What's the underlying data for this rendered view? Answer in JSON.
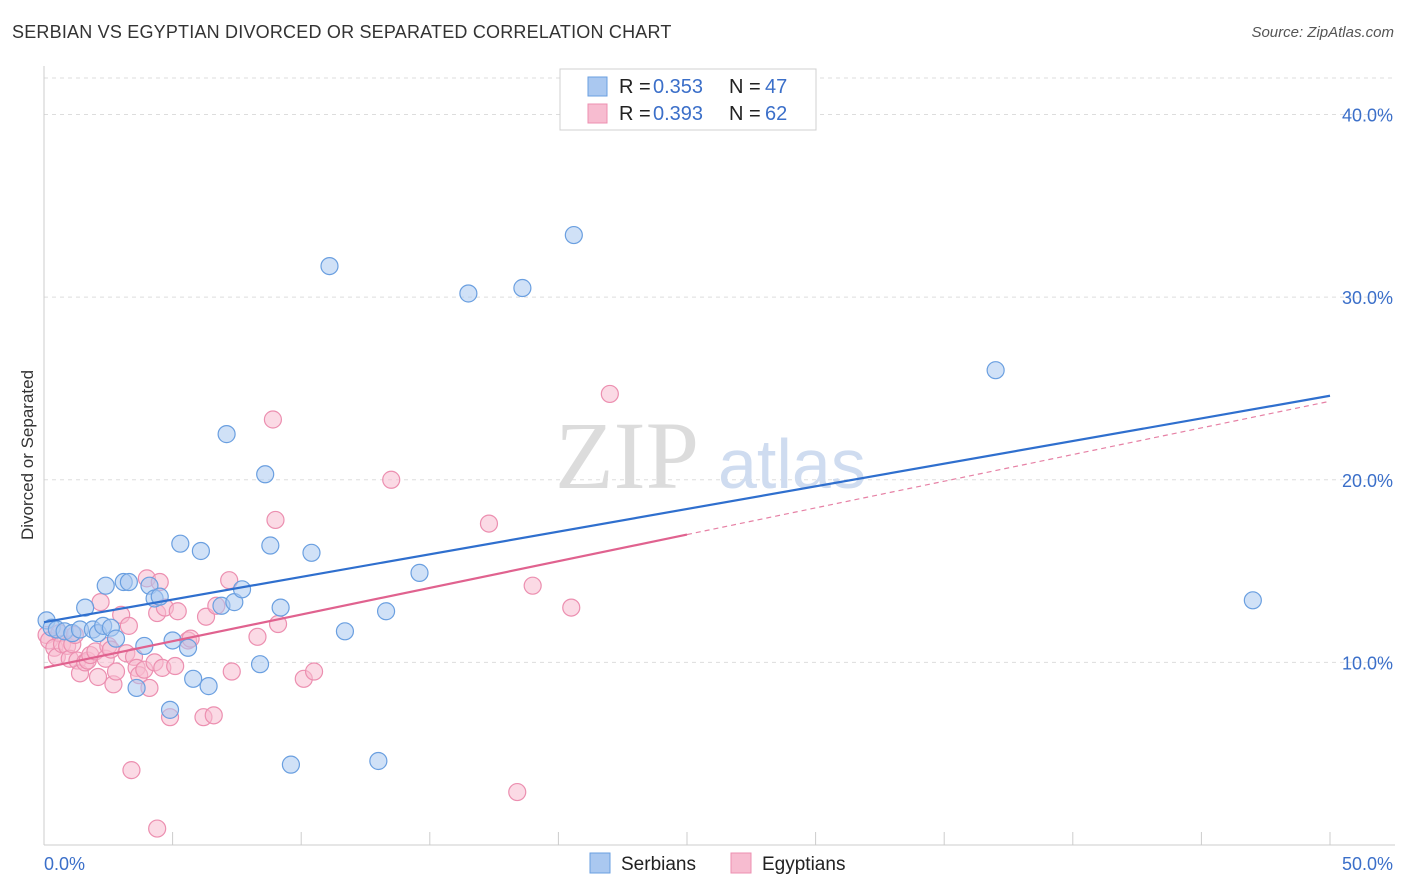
{
  "title": "SERBIAN VS EGYPTIAN DIVORCED OR SEPARATED CORRELATION CHART",
  "source": "Source: ZipAtlas.com",
  "watermark": {
    "zip": "ZIP",
    "atlas": "atlas"
  },
  "legend": {
    "series1": {
      "r_label": "R = ",
      "r_value": "0.353",
      "n_label": "N = ",
      "n_value": "47"
    },
    "series2": {
      "r_label": "R = ",
      "r_value": "0.393",
      "n_label": "N = ",
      "n_value": "62"
    }
  },
  "colors": {
    "serbians_fill": "#aac8f0",
    "serbians_stroke": "#6a9fe0",
    "serbians_line": "#2f6fce",
    "egyptians_fill": "#f7bcd0",
    "egyptians_stroke": "#ec8fb0",
    "egyptians_line": "#e0628f",
    "grid": "#dddddd",
    "axis_label": "#3b6fc9"
  },
  "chart_data": {
    "type": "scatter",
    "title": "SERBIAN VS EGYPTIAN DIVORCED OR SEPARATED CORRELATION CHART",
    "xlabel": "",
    "ylabel": "Divorced or Separated",
    "xlim": [
      0,
      50
    ],
    "ylim": [
      0,
      42
    ],
    "x_tick_labels": [
      "0.0%",
      "50.0%"
    ],
    "y_ticks": [
      10,
      20,
      30,
      40
    ],
    "y_tick_labels": [
      "10.0%",
      "20.0%",
      "30.0%",
      "40.0%"
    ],
    "grid": true,
    "legend_position": "top-center",
    "series": [
      {
        "name": "Serbians",
        "trend": {
          "x": [
            0,
            50
          ],
          "y": [
            12.2,
            24.6
          ]
        },
        "points": [
          [
            0.1,
            12.3
          ],
          [
            0.3,
            11.9
          ],
          [
            0.5,
            11.8
          ],
          [
            0.8,
            11.7
          ],
          [
            1.1,
            11.6
          ],
          [
            1.4,
            11.8
          ],
          [
            1.6,
            13.0
          ],
          [
            1.9,
            11.8
          ],
          [
            2.1,
            11.6
          ],
          [
            2.3,
            12.0
          ],
          [
            2.4,
            14.2
          ],
          [
            2.6,
            11.9
          ],
          [
            2.8,
            11.3
          ],
          [
            3.1,
            14.4
          ],
          [
            3.3,
            14.4
          ],
          [
            3.6,
            8.6
          ],
          [
            3.9,
            10.9
          ],
          [
            4.1,
            14.2
          ],
          [
            4.3,
            13.5
          ],
          [
            4.5,
            13.6
          ],
          [
            4.9,
            7.4
          ],
          [
            5.0,
            11.2
          ],
          [
            5.3,
            16.5
          ],
          [
            5.6,
            10.8
          ],
          [
            5.8,
            9.1
          ],
          [
            6.1,
            16.1
          ],
          [
            6.4,
            8.7
          ],
          [
            6.9,
            13.1
          ],
          [
            7.1,
            22.5
          ],
          [
            7.4,
            13.3
          ],
          [
            7.7,
            14.0
          ],
          [
            8.4,
            9.9
          ],
          [
            8.6,
            20.3
          ],
          [
            8.8,
            16.4
          ],
          [
            9.2,
            13.0
          ],
          [
            9.6,
            4.4
          ],
          [
            10.4,
            16.0
          ],
          [
            11.1,
            31.7
          ],
          [
            11.7,
            11.7
          ],
          [
            13.0,
            4.6
          ],
          [
            13.3,
            12.8
          ],
          [
            14.6,
            14.9
          ],
          [
            16.5,
            30.2
          ],
          [
            18.6,
            30.5
          ],
          [
            20.6,
            33.4
          ],
          [
            37.0,
            26.0
          ],
          [
            47.0,
            13.4
          ]
        ]
      },
      {
        "name": "Egyptians",
        "trend": {
          "x": [
            0,
            25
          ],
          "y": [
            9.7,
            17.0
          ]
        },
        "trend_dashed": {
          "x": [
            25,
            50
          ],
          "y": [
            17.0,
            24.3
          ]
        },
        "points": [
          [
            0.1,
            11.5
          ],
          [
            0.2,
            11.2
          ],
          [
            0.4,
            10.8
          ],
          [
            0.5,
            10.3
          ],
          [
            0.6,
            11.6
          ],
          [
            0.7,
            11.0
          ],
          [
            0.9,
            10.9
          ],
          [
            1.0,
            10.2
          ],
          [
            1.1,
            11.0
          ],
          [
            1.2,
            11.5
          ],
          [
            1.3,
            10.1
          ],
          [
            1.4,
            9.4
          ],
          [
            1.6,
            10.0
          ],
          [
            1.7,
            10.1
          ],
          [
            1.8,
            10.4
          ],
          [
            2.0,
            10.6
          ],
          [
            2.1,
            9.2
          ],
          [
            2.2,
            13.3
          ],
          [
            2.4,
            10.2
          ],
          [
            2.5,
            10.9
          ],
          [
            2.6,
            10.7
          ],
          [
            2.7,
            8.8
          ],
          [
            2.8,
            9.5
          ],
          [
            3.0,
            12.6
          ],
          [
            3.2,
            10.5
          ],
          [
            3.3,
            12.0
          ],
          [
            3.5,
            10.3
          ],
          [
            3.6,
            9.7
          ],
          [
            3.7,
            9.3
          ],
          [
            3.9,
            9.6
          ],
          [
            4.0,
            14.6
          ],
          [
            4.1,
            8.6
          ],
          [
            4.3,
            10.0
          ],
          [
            4.4,
            12.7
          ],
          [
            4.5,
            14.4
          ],
          [
            4.6,
            9.7
          ],
          [
            4.7,
            13.0
          ],
          [
            4.9,
            7.0
          ],
          [
            5.2,
            12.8
          ],
          [
            5.6,
            11.2
          ],
          [
            5.7,
            11.3
          ],
          [
            6.2,
            7.0
          ],
          [
            6.3,
            12.5
          ],
          [
            6.6,
            7.1
          ],
          [
            6.7,
            13.1
          ],
          [
            7.2,
            14.5
          ],
          [
            7.3,
            9.5
          ],
          [
            8.3,
            11.4
          ],
          [
            8.9,
            23.3
          ],
          [
            9.0,
            17.8
          ],
          [
            9.1,
            12.1
          ],
          [
            10.1,
            9.1
          ],
          [
            10.5,
            9.5
          ],
          [
            13.5,
            20.0
          ],
          [
            17.3,
            17.6
          ],
          [
            18.4,
            2.9
          ],
          [
            19.0,
            14.2
          ],
          [
            20.5,
            13.0
          ],
          [
            22.0,
            24.7
          ],
          [
            3.4,
            4.1
          ],
          [
            4.4,
            0.9
          ],
          [
            5.1,
            9.8
          ]
        ]
      }
    ]
  },
  "bottom_legend": {
    "serbians": "Serbians",
    "egyptians": "Egyptians"
  }
}
